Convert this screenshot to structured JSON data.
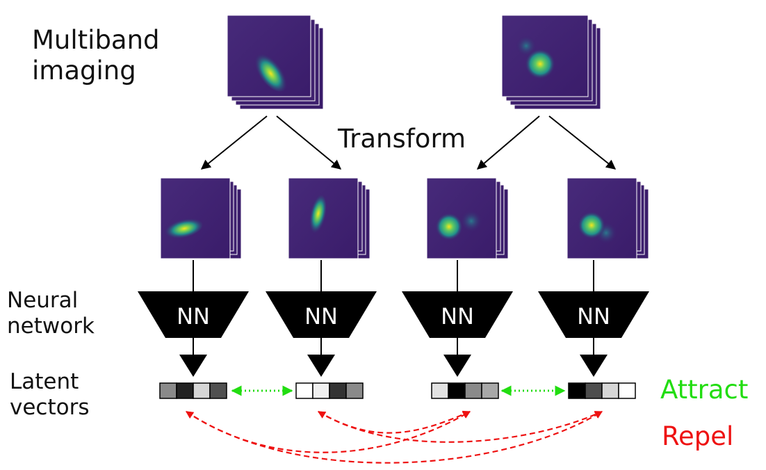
{
  "labels": {
    "multiband": "Multiband\nimaging",
    "transform": "Transform",
    "neural": "Neural\nnetwork",
    "latent": "Latent\nvectors",
    "attract": "Attract",
    "repel": "Repel",
    "nn": "NN"
  },
  "colors": {
    "attract": "#22dd11",
    "repel": "#ee1111",
    "nn_block": "#000000",
    "image_bg": "#3b1f6e",
    "galaxy_core": "#f4e61e",
    "galaxy_mid": "#21918c"
  },
  "latent_vectors": [
    {
      "cells": [
        "#8a8a8a",
        "#222222",
        "#d6d6d6",
        "#505050"
      ]
    },
    {
      "cells": [
        "#ffffff",
        "#f0f0f0",
        "#333333",
        "#8a8a8a"
      ]
    },
    {
      "cells": [
        "#e2e2e2",
        "#000000",
        "#8a8a8a",
        "#a8a8a8"
      ]
    },
    {
      "cells": [
        "#000000",
        "#4d4d4d",
        "#d6d6d6",
        "#ffffff"
      ]
    }
  ],
  "source_images": [
    {
      "icon": "galaxy-elongated-image"
    },
    {
      "icon": "galaxy-pair-image"
    }
  ],
  "augmented_images": [
    {
      "icon": "galaxy-rotated-image"
    },
    {
      "icon": "galaxy-vertical-image"
    },
    {
      "icon": "galaxy-pair-image"
    },
    {
      "icon": "galaxy-pair-image"
    }
  ]
}
